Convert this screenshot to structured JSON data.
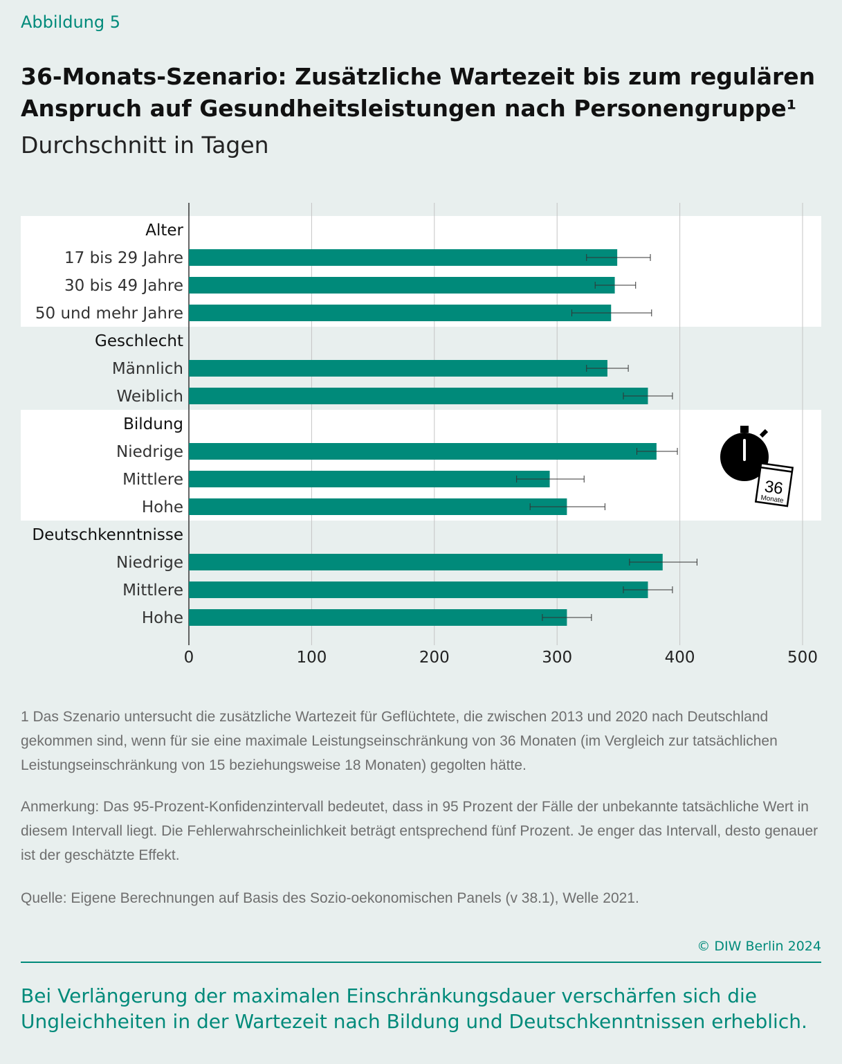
{
  "figure_label": "Abbildung 5",
  "title": "36-Monats-Szenario: Zusätzliche Wartezeit bis zum regulären Anspruch auf Gesundheitsleistungen nach Personengruppe¹",
  "subtitle": "Durchschnitt in Tagen",
  "icon": {
    "name": "stopwatch-calendar-icon",
    "number": "36",
    "word": "Monate"
  },
  "colors": {
    "bar": "#008a7a",
    "accent": "#008a7a",
    "band": "#ffffff",
    "background": "#e8efee"
  },
  "chart_data": {
    "type": "bar",
    "orientation": "horizontal",
    "xlim": [
      0,
      500
    ],
    "xticks": [
      "0",
      "100",
      "200",
      "300",
      "400",
      "500"
    ],
    "grid": true,
    "error_bars": "95-Prozent-Konfidenzintervall",
    "groups": [
      {
        "name": "Alter",
        "band": true,
        "rows": [
          {
            "label": "17 bis 29 Jahre",
            "value": 349,
            "ci": [
              324,
              376
            ]
          },
          {
            "label": "30 bis 49 Jahre",
            "value": 347,
            "ci": [
              331,
              364
            ]
          },
          {
            "label": "50 und mehr Jahre",
            "value": 344,
            "ci": [
              312,
              377
            ]
          }
        ]
      },
      {
        "name": "Geschlecht",
        "band": false,
        "rows": [
          {
            "label": "Männlich",
            "value": 341,
            "ci": [
              324,
              358
            ]
          },
          {
            "label": "Weiblich",
            "value": 374,
            "ci": [
              354,
              394
            ]
          }
        ]
      },
      {
        "name": "Bildung",
        "band": true,
        "rows": [
          {
            "label": "Niedrige",
            "value": 381,
            "ci": [
              365,
              398
            ]
          },
          {
            "label": "Mittlere",
            "value": 294,
            "ci": [
              267,
              322
            ]
          },
          {
            "label": "Hohe",
            "value": 308,
            "ci": [
              278,
              339
            ]
          }
        ]
      },
      {
        "name": "Deutschkenntnisse",
        "band": false,
        "rows": [
          {
            "label": "Niedrige",
            "value": 386,
            "ci": [
              359,
              414
            ]
          },
          {
            "label": "Mittlere",
            "value": 374,
            "ci": [
              354,
              394
            ]
          },
          {
            "label": "Hohe",
            "value": 308,
            "ci": [
              288,
              328
            ]
          }
        ]
      }
    ]
  },
  "footnote": "1  Das Szenario untersucht die zusätzliche Wartezeit für Geflüchtete, die zwischen 2013 und 2020 nach Deutschland gekommen sind, wenn für sie eine maximale Leistungseinschränkung von 36 Monaten  (im Vergleich zur tatsächlichen Leistungseinschränkung von 15 beziehungsweise 18 Monaten) gegolten hätte.",
  "note": "Anmerkung: Das 95-Prozent-Konfidenzintervall bedeutet, dass in 95 Prozent der Fälle der unbekannte tatsächliche Wert in diesem Intervall liegt. Die Fehlerwahrscheinlichkeit beträgt entsprechend fünf Prozent. Je enger das Intervall, desto genauer ist der geschätzte Effekt.",
  "source": "Quelle: Eigene Berechnungen auf Basis des Sozio-oekonomischen Panels (v 38.1), Welle 2021.",
  "copyright": "© DIW Berlin 2024",
  "summary": "Bei Verlängerung der maximalen Einschränkungsdauer verschärfen sich die Ungleichheiten in der Wartezeit nach Bildung und Deutschkenntnissen erheblich."
}
